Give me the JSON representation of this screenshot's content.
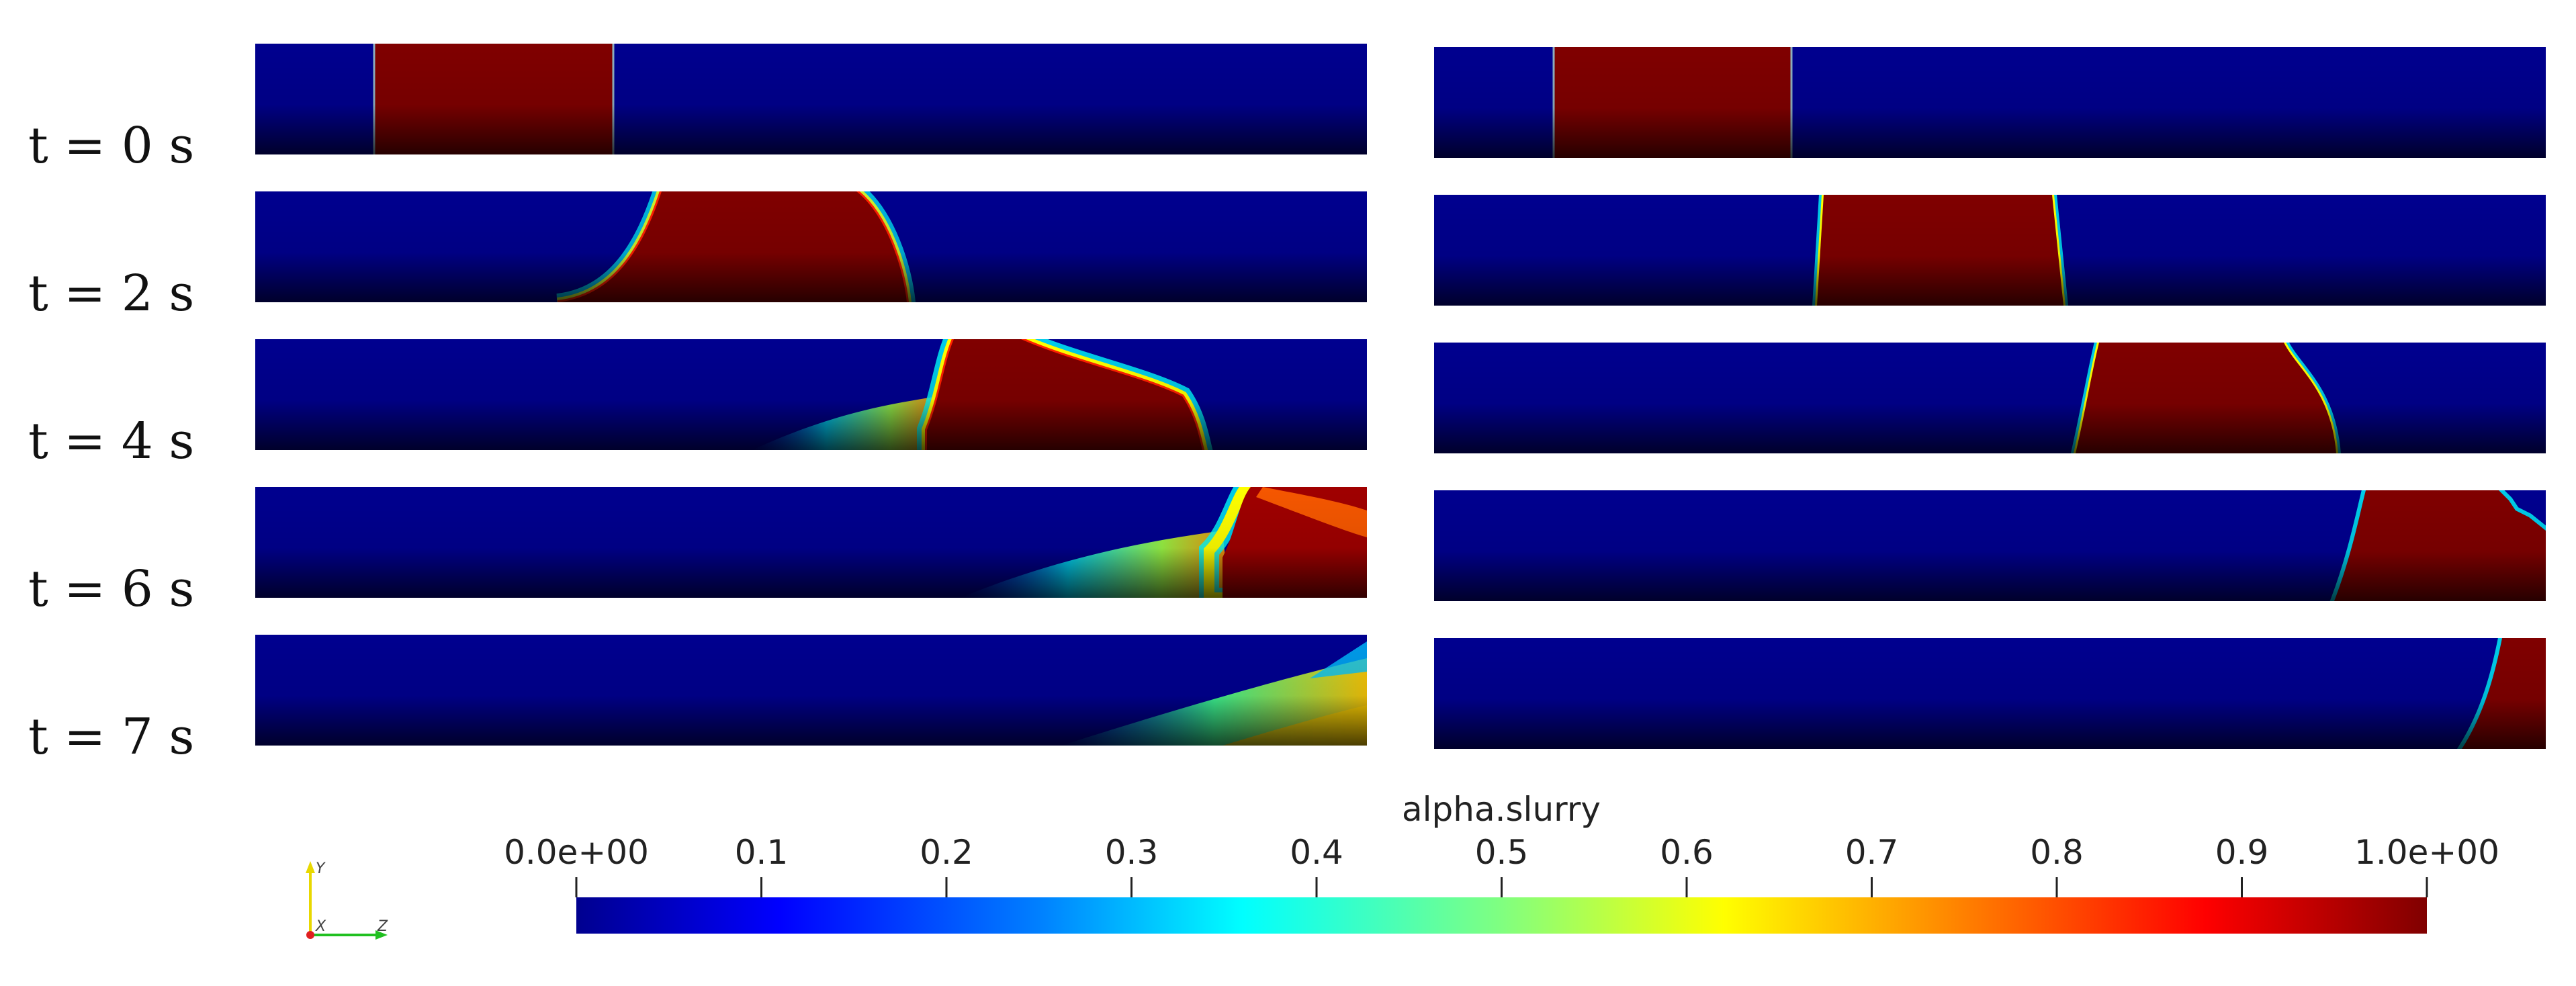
{
  "rows": [
    {
      "time_label": "t = 0 s"
    },
    {
      "time_label": "t = 2 s"
    },
    {
      "time_label": "t = 4 s"
    },
    {
      "time_label": "t = 6 s"
    },
    {
      "time_label": "t = 7 s"
    }
  ],
  "columns": 2,
  "colorbar": {
    "title": "alpha.slurry",
    "colormap": "jet",
    "ticks": [
      "0.0e+00",
      "0.1",
      "0.2",
      "0.3",
      "0.4",
      "0.5",
      "0.6",
      "0.7",
      "0.8",
      "0.9",
      "1.0e+00"
    ],
    "colors": [
      "#00008f",
      "#0000ff",
      "#0080ff",
      "#00ffff",
      "#80ff80",
      "#ffff00",
      "#ff8000",
      "#ff0000",
      "#800000"
    ]
  },
  "orientation_axes": {
    "labels": [
      "Y",
      "X",
      "Z"
    ],
    "colors": {
      "Y": "#e8d800",
      "X": "#e02020",
      "Z": "#20c020"
    }
  }
}
